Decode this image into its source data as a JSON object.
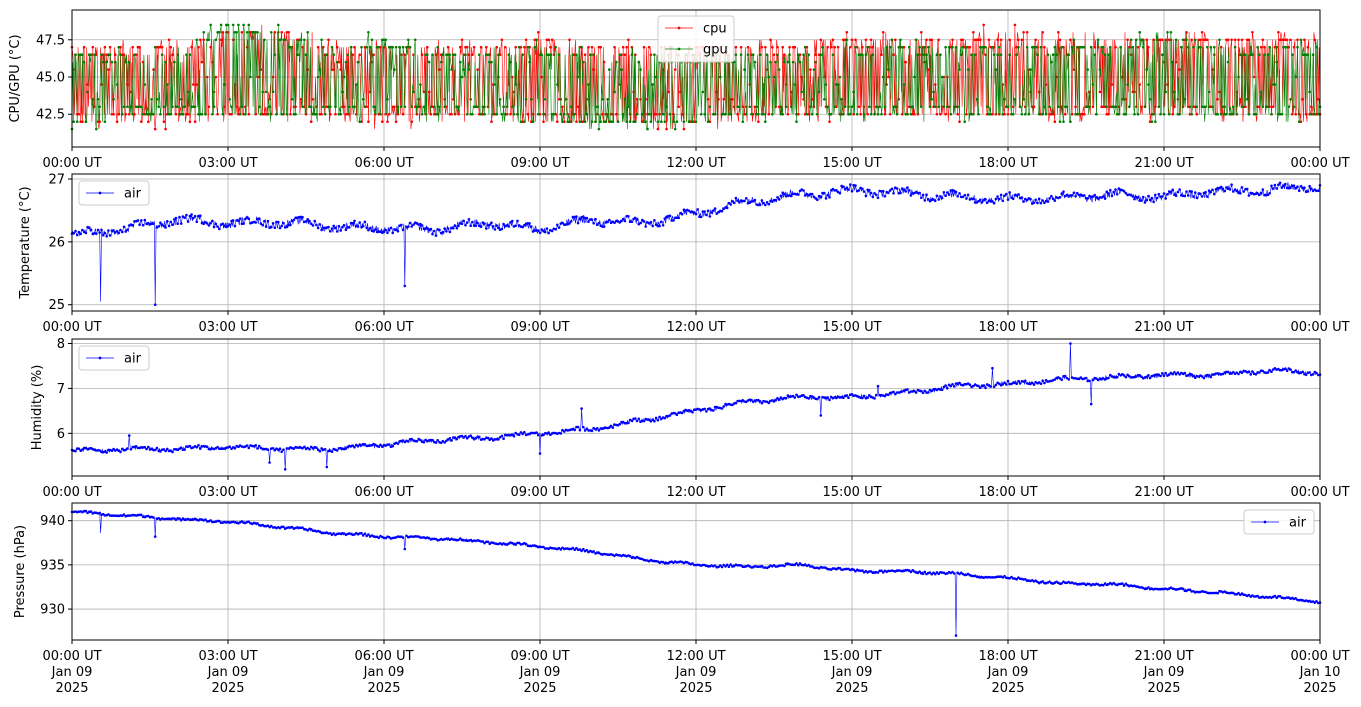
{
  "chart_data": [
    {
      "type": "line",
      "ylabel": "CPU/GPU (°C)",
      "ylim": [
        40.3,
        49.5
      ],
      "yticks": [
        42.5,
        45.0,
        47.5
      ],
      "ytick_labels": [
        "42.5",
        "45.0",
        "47.5"
      ],
      "xtick_labels": [
        "00:00 UT",
        "03:00 UT",
        "06:00 UT",
        "09:00 UT",
        "12:00 UT",
        "15:00 UT",
        "18:00 UT",
        "21:00 UT",
        "00:00 UT"
      ],
      "grid": true,
      "legend_position": "top-center",
      "series": [
        {
          "name": "cpu",
          "color": "#ff0000",
          "hours": [
            0,
            1,
            2,
            3,
            4,
            5,
            6,
            7,
            8,
            9,
            10,
            11,
            12,
            13,
            14,
            15,
            16,
            17,
            18,
            19,
            20,
            21,
            22,
            23,
            24
          ],
          "values": [
            44.5,
            44.0,
            44.8,
            43.6,
            45.2,
            44.4,
            43.9,
            45.0,
            44.2,
            43.8,
            44.6,
            43.5,
            44.3,
            44.7,
            45.1,
            44.0,
            44.6,
            44.2,
            44.8,
            44.4,
            44.9,
            44.3,
            44.7,
            44.5,
            44.6
          ],
          "min_values": [
            41.3,
            41.5,
            41.4,
            41.8,
            41.8,
            41.8,
            41.5,
            41.8,
            41.8,
            41.5,
            41.2,
            41.3,
            41.2,
            41.8,
            41.8,
            41.8,
            41.8,
            41.8,
            41.8,
            41.8,
            41.8,
            41.8,
            41.8,
            41.8,
            41.8
          ],
          "max_values": [
            47.7,
            47.7,
            47.7,
            48.8,
            48.6,
            47.7,
            47.8,
            47.7,
            47.7,
            48.3,
            47.6,
            47.6,
            47.7,
            47.7,
            47.7,
            48.3,
            48.3,
            48.3,
            48.3,
            48.3,
            48.3,
            48.3,
            48.3,
            48.3,
            48.3
          ]
        },
        {
          "name": "gpu",
          "color": "#008000",
          "hours": [
            0,
            1,
            2,
            3,
            4,
            5,
            6,
            7,
            8,
            9,
            10,
            11,
            12,
            13,
            14,
            15,
            16,
            17,
            18,
            19,
            20,
            21,
            22,
            23,
            24
          ],
          "values": [
            44.3,
            43.9,
            44.6,
            44.5,
            45.3,
            44.6,
            44.1,
            45.2,
            44.0,
            43.9,
            44.4,
            43.7,
            44.4,
            44.6,
            45.0,
            44.2,
            44.5,
            44.1,
            44.9,
            44.5,
            44.8,
            44.2,
            44.6,
            44.4,
            44.5
          ],
          "min_values": [
            40.9,
            41.8,
            41.8,
            41.8,
            41.8,
            41.8,
            41.8,
            41.8,
            41.8,
            41.5,
            41.3,
            41.3,
            41.3,
            41.8,
            41.8,
            41.8,
            41.8,
            41.8,
            41.8,
            41.8,
            41.8,
            41.8,
            41.8,
            41.8,
            41.8
          ],
          "max_values": [
            47.2,
            47.2,
            47.2,
            49.3,
            48.5,
            47.2,
            48.3,
            47.2,
            47.2,
            47.7,
            47.2,
            47.2,
            47.2,
            47.2,
            47.2,
            47.7,
            47.7,
            47.7,
            47.7,
            47.7,
            47.7,
            48.7,
            47.7,
            47.7,
            47.7
          ]
        }
      ]
    },
    {
      "type": "line",
      "ylabel": "Temperature (°C)",
      "ylim": [
        24.9,
        27.08
      ],
      "yticks": [
        25,
        26,
        27
      ],
      "ytick_labels": [
        "25",
        "26",
        "27"
      ],
      "xtick_labels": [
        "00:00 UT",
        "03:00 UT",
        "06:00 UT",
        "09:00 UT",
        "12:00 UT",
        "15:00 UT",
        "18:00 UT",
        "21:00 UT",
        "00:00 UT"
      ],
      "grid": true,
      "legend_position": "top-left",
      "series": [
        {
          "name": "air",
          "color": "#0000ff",
          "hours": [
            0,
            1,
            2,
            3,
            4,
            5,
            6,
            7,
            8,
            9,
            10,
            11,
            12,
            13,
            14,
            15,
            16,
            17,
            18,
            19,
            20,
            21,
            22,
            23,
            24
          ],
          "values": [
            26.1,
            26.2,
            26.35,
            26.3,
            26.32,
            26.25,
            26.22,
            26.2,
            26.3,
            26.2,
            26.35,
            26.3,
            26.45,
            26.65,
            26.75,
            26.82,
            26.78,
            26.72,
            26.68,
            26.7,
            26.75,
            26.72,
            26.8,
            26.82,
            26.9
          ],
          "outliers": [
            [
              0.55,
              25.05
            ],
            [
              1.6,
              25.0
            ],
            [
              6.4,
              25.3
            ]
          ]
        }
      ]
    },
    {
      "type": "line",
      "ylabel": "Humidity (%)",
      "ylim": [
        5.05,
        8.1
      ],
      "yticks": [
        6,
        7,
        8
      ],
      "ytick_labels": [
        "6",
        "7",
        "8"
      ],
      "xtick_labels": [
        "00:00 UT",
        "03:00 UT",
        "06:00 UT",
        "09:00 UT",
        "12:00 UT",
        "15:00 UT",
        "18:00 UT",
        "21:00 UT",
        "00:00 UT"
      ],
      "grid": true,
      "legend_position": "top-left",
      "series": [
        {
          "name": "air",
          "color": "#0000ff",
          "hours": [
            0,
            1,
            2,
            3,
            4,
            5,
            6,
            7,
            8,
            9,
            10,
            11,
            12,
            13,
            14,
            15,
            16,
            17,
            18,
            19,
            20,
            21,
            22,
            23,
            24
          ],
          "values": [
            5.6,
            5.65,
            5.65,
            5.7,
            5.65,
            5.65,
            5.75,
            5.85,
            5.9,
            6.0,
            6.1,
            6.3,
            6.5,
            6.7,
            6.8,
            6.8,
            6.9,
            7.05,
            7.1,
            7.2,
            7.25,
            7.3,
            7.3,
            7.4,
            7.35
          ],
          "outliers": [
            [
              1.1,
              5.95
            ],
            [
              3.8,
              5.35
            ],
            [
              4.1,
              5.2
            ],
            [
              4.9,
              5.25
            ],
            [
              9.8,
              6.55
            ],
            [
              9.0,
              5.55
            ],
            [
              14.4,
              6.4
            ],
            [
              15.5,
              7.05
            ],
            [
              17.7,
              7.45
            ],
            [
              19.2,
              8.0
            ],
            [
              19.6,
              6.65
            ]
          ]
        }
      ]
    },
    {
      "type": "line",
      "ylabel": "Pressure (hPa)",
      "ylim": [
        926.5,
        942.0
      ],
      "yticks": [
        930,
        935,
        940
      ],
      "ytick_labels": [
        "930",
        "935",
        "940"
      ],
      "xtick_labels": [
        "00:00 UT",
        "03:00 UT",
        "06:00 UT",
        "09:00 UT",
        "12:00 UT",
        "15:00 UT",
        "18:00 UT",
        "21:00 UT",
        "00:00 UT"
      ],
      "xtick_dates": [
        "Jan 09",
        "Jan 09",
        "Jan 09",
        "Jan 09",
        "Jan 09",
        "Jan 09",
        "Jan 09",
        "Jan 09",
        "Jan 10"
      ],
      "xtick_years": [
        "2025",
        "2025",
        "2025",
        "2025",
        "2025",
        "2025",
        "2025",
        "2025",
        "2025"
      ],
      "grid": true,
      "legend_position": "top-right",
      "series": [
        {
          "name": "air",
          "color": "#0000ff",
          "hours": [
            0,
            1,
            2,
            3,
            4,
            5,
            6,
            7,
            8,
            9,
            10,
            11,
            12,
            13,
            14,
            15,
            16,
            17,
            18,
            19,
            20,
            21,
            22,
            23,
            24
          ],
          "values": [
            941.0,
            940.6,
            940.2,
            939.9,
            939.3,
            938.6,
            938.2,
            938.0,
            937.6,
            937.1,
            936.5,
            935.6,
            935.0,
            934.8,
            935.0,
            934.3,
            934.3,
            934.0,
            933.5,
            932.9,
            932.8,
            932.3,
            931.9,
            931.4,
            930.8
          ],
          "outliers": [
            [
              0.55,
              938.6
            ],
            [
              1.6,
              938.2
            ],
            [
              6.4,
              936.8
            ],
            [
              17.0,
              927.0
            ]
          ]
        }
      ]
    }
  ]
}
